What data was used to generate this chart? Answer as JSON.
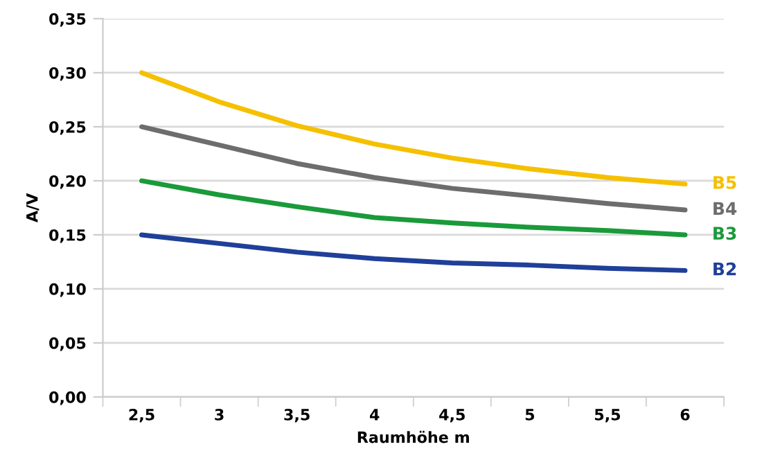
{
  "chart_data": {
    "type": "line",
    "xlabel": "Raumhöhe m",
    "ylabel": "A/V",
    "categories": [
      "2,5",
      "3",
      "3,5",
      "4",
      "4,5",
      "5",
      "5,5",
      "6"
    ],
    "series": [
      {
        "name": "B5",
        "color": "#f5c000",
        "values": [
          0.3,
          0.273,
          0.251,
          0.234,
          0.221,
          0.211,
          0.203,
          0.197
        ]
      },
      {
        "name": "B4",
        "color": "#6d6d6d",
        "values": [
          0.25,
          0.233,
          0.216,
          0.203,
          0.193,
          0.186,
          0.179,
          0.173
        ]
      },
      {
        "name": "B3",
        "color": "#1a9a3a",
        "values": [
          0.2,
          0.187,
          0.176,
          0.166,
          0.161,
          0.157,
          0.154,
          0.15
        ]
      },
      {
        "name": "B2",
        "color": "#1f3f99",
        "values": [
          0.15,
          0.142,
          0.134,
          0.128,
          0.124,
          0.122,
          0.119,
          0.117
        ]
      }
    ],
    "ylim": [
      0,
      0.35
    ],
    "yticks": [
      {
        "value": 0,
        "label": "0,00"
      },
      {
        "value": 0.05,
        "label": "0,05"
      },
      {
        "value": 0.1,
        "label": "0,10"
      },
      {
        "value": 0.15,
        "label": "0,15"
      },
      {
        "value": 0.2,
        "label": "0,20"
      },
      {
        "value": 0.25,
        "label": "0,25"
      },
      {
        "value": 0.3,
        "label": "0,30"
      },
      {
        "value": 0.35,
        "label": "0,35"
      }
    ],
    "grid": "y",
    "marker": "none",
    "line_style": "solid"
  }
}
